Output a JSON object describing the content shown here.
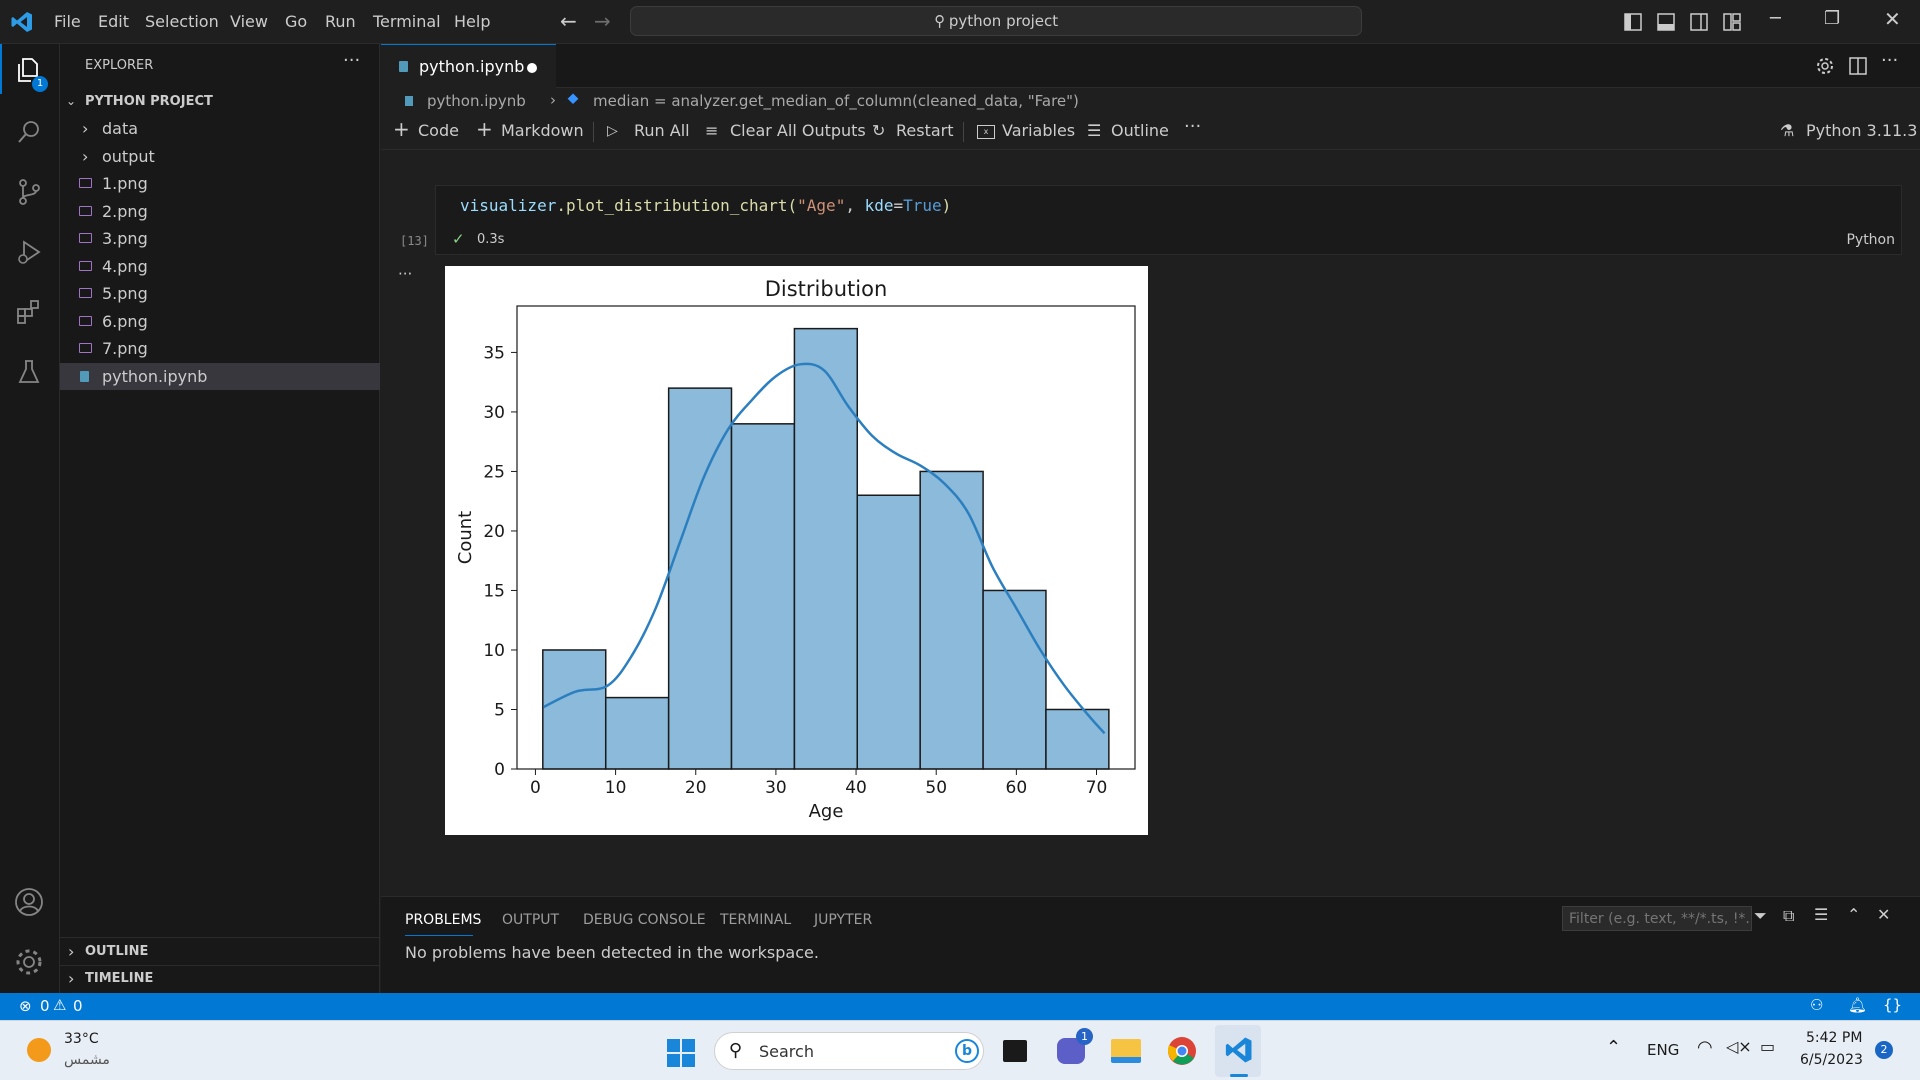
{
  "titlebar": {
    "menus": [
      "File",
      "Edit",
      "Selection",
      "View",
      "Go",
      "Run",
      "Terminal",
      "Help"
    ],
    "search": "python project"
  },
  "activity": {
    "badge": "1"
  },
  "explorer": {
    "title": "EXPLORER",
    "section": "PYTHON PROJECT",
    "folders": [
      "data",
      "output"
    ],
    "files": [
      "1.png",
      "2.png",
      "3.png",
      "4.png",
      "5.png",
      "6.png",
      "7.png"
    ],
    "notebook": "python.ipynb",
    "outline": "OUTLINE",
    "timeline": "TIMELINE"
  },
  "editor": {
    "tab": "python.ipynb",
    "breadcrumb_file": "python.ipynb",
    "breadcrumb_symbol": "median = analyzer.get_median_of_column(cleaned_data, \"Fare\")",
    "toolbar": {
      "code": "Code",
      "markdown": "Markdown",
      "run_all": "Run All",
      "clear": "Clear All Outputs",
      "restart": "Restart",
      "variables": "Variables",
      "outline": "Outline",
      "kernel": "Python 3.11.3"
    },
    "cell": {
      "exec_count": "[13]",
      "time": "0.3s",
      "lang": "Python",
      "code_obj": "visualizer",
      "code_fn": ".plot_distribution_chart(",
      "code_str": "\"Age\"",
      "code_sep": ", ",
      "code_kw": "kde",
      "code_eq": "=",
      "code_val": "True",
      "code_end": ")"
    }
  },
  "chart_data": {
    "type": "bar",
    "title": "Distribution",
    "xlabel": "Age",
    "ylabel": "Count",
    "bin_edges": [
      0.92,
      8.77,
      16.62,
      24.46,
      32.31,
      40.15,
      48.0,
      55.85,
      63.69,
      71.54
    ],
    "values": [
      10,
      6,
      32,
      29,
      37,
      23,
      25,
      15,
      5
    ],
    "xticks": [
      0,
      10,
      20,
      30,
      40,
      50,
      60,
      70
    ],
    "yticks": [
      0,
      5,
      10,
      15,
      20,
      25,
      30,
      35
    ],
    "xlim": [
      -2.3,
      74.8
    ],
    "ylim": [
      0,
      38.9
    ],
    "kde": {
      "x": [
        1,
        5,
        9,
        12,
        15,
        18,
        21,
        24,
        27,
        30,
        33,
        36,
        39,
        42,
        45,
        48,
        51,
        54,
        57,
        60,
        63,
        66,
        69,
        71
      ],
      "y": [
        5.2,
        6.5,
        7,
        9.5,
        13.5,
        19,
        24.5,
        28.5,
        31,
        33,
        34,
        33.5,
        30.5,
        28,
        26.5,
        25.5,
        24,
        21.5,
        17,
        13.5,
        10,
        7,
        4.5,
        3
      ]
    },
    "bar_color": "#8bbadb",
    "line_color": "#2c7fbf",
    "grid": false
  },
  "panel": {
    "tabs": [
      "PROBLEMS",
      "OUTPUT",
      "DEBUG CONSOLE",
      "TERMINAL",
      "JUPYTER"
    ],
    "message": "No problems have been detected in the workspace.",
    "filter_placeholder": "Filter (e.g. text, **/*.ts, !*..."
  },
  "status": {
    "errors": "0",
    "warnings": "0"
  },
  "taskbar": {
    "temp": "33°C",
    "weather": "مشمس",
    "search": "Search",
    "lang": "ENG",
    "time": "5:42 PM",
    "date": "6/5/2023",
    "teams_badge": "1",
    "notif_badge": "2"
  }
}
